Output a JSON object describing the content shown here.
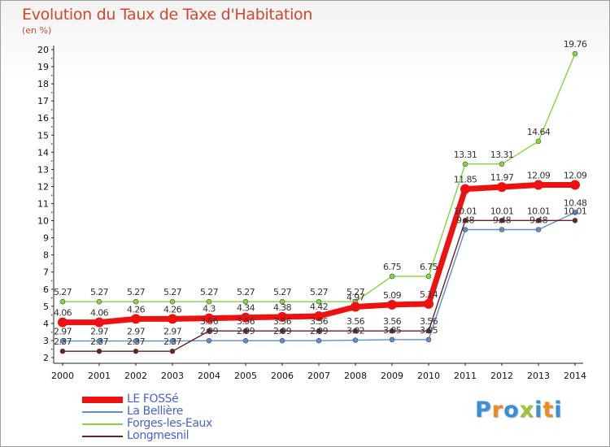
{
  "chart_data": {
    "type": "line",
    "title": "Evolution du Taux de Taxe d'Habitation",
    "unit_label": "(en %)",
    "x": [
      "2000",
      "2001",
      "2002",
      "2003",
      "2004",
      "2005",
      "2006",
      "2007",
      "2008",
      "2009",
      "2010",
      "2011",
      "2012",
      "2013",
      "2014"
    ],
    "ylim": [
      2,
      20
    ],
    "yticks": [
      "2",
      "3",
      "4",
      "5",
      "6",
      "7",
      "8",
      "9",
      "10",
      "11",
      "12",
      "13",
      "14",
      "15",
      "16",
      "17",
      "18",
      "19",
      "20"
    ],
    "grid": false,
    "legend_position": "bottom-left",
    "series": [
      {
        "name": "LE FOSSé",
        "color": "#ee1111",
        "values": [
          4.06,
          4.06,
          4.26,
          4.26,
          4.3,
          4.34,
          4.38,
          4.42,
          4.97,
          5.09,
          5.14,
          11.85,
          11.97,
          12.09,
          12.09
        ],
        "value_labels": [
          "4.06",
          "4.06",
          "4.26",
          "4.26",
          "4.3",
          "4.34",
          "4.38",
          "4.42",
          "4.97",
          "5.09",
          "5.14",
          "11.85",
          "11.97",
          "12.09",
          "12.09"
        ]
      },
      {
        "name": "La Bellière",
        "color": "#5b8fc7",
        "values": [
          2.97,
          2.97,
          2.97,
          2.97,
          2.99,
          2.99,
          2.99,
          2.99,
          3.02,
          3.05,
          3.05,
          9.48,
          9.48,
          9.48,
          10.48
        ],
        "value_labels": [
          "2.97",
          "2.97",
          "2.97",
          "2.97",
          "2.99",
          "2.99",
          "2.99",
          "2.99",
          "3.02",
          "3.05",
          "3.05",
          "9.48",
          "9.48",
          "9.48",
          "10.48"
        ]
      },
      {
        "name": "Forges-les-Eaux",
        "color": "#82d640",
        "values": [
          5.27,
          5.27,
          5.27,
          5.27,
          5.27,
          5.27,
          5.27,
          5.27,
          5.27,
          6.75,
          6.75,
          13.31,
          13.31,
          14.64,
          19.76
        ],
        "value_labels": [
          "5.27",
          "5.27",
          "5.27",
          "5.27",
          "5.27",
          "5.27",
          "5.27",
          "5.27",
          "5.27",
          "6.75",
          "6.75",
          "13.31",
          "13.31",
          "14.64",
          "19.76"
        ]
      },
      {
        "name": "Longmesnil",
        "color": "#6b1f1f",
        "values": [
          2.37,
          2.37,
          2.37,
          2.37,
          3.56,
          3.56,
          3.56,
          3.56,
          3.56,
          3.56,
          3.56,
          10.01,
          10.01,
          10.01,
          10.01
        ],
        "value_labels": [
          "2.37",
          "2.37",
          "2.37",
          "2.37",
          "3.56",
          "3.56",
          "3.56",
          "3.56",
          "3.56",
          "3.56",
          "3.56",
          "10.01",
          "10.01",
          "10.01",
          "10.01"
        ]
      }
    ]
  },
  "logo": {
    "letters": [
      "P",
      "r",
      "o",
      "x",
      "i",
      "t",
      "i"
    ],
    "colors": [
      "#3a8fd8",
      "#f28a1c",
      "#3a8fd8",
      "#9ac53a",
      "#3a8fd8",
      "#f28a1c",
      "#3a8fd8"
    ]
  }
}
